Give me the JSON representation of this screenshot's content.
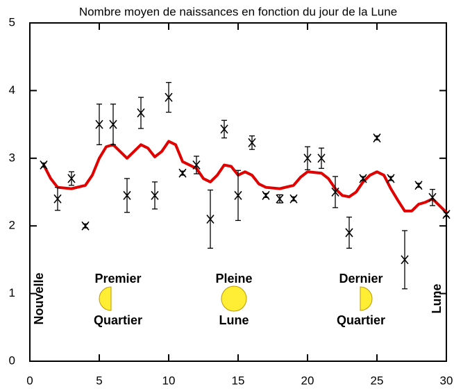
{
  "chart_data": {
    "type": "scatter",
    "title": "Nombre moyen de naissances en fonction du jour de la Lune",
    "xlim": [
      0,
      30
    ],
    "xticks": [
      0,
      5,
      10,
      15,
      20,
      25,
      30
    ],
    "ylim": [
      0,
      5
    ],
    "yticks": [
      0,
      1,
      2,
      3,
      4,
      5
    ],
    "points": {
      "color": "#000000",
      "x": [
        1,
        2,
        3,
        4,
        5,
        6,
        7,
        8,
        9,
        10,
        11,
        12,
        13,
        14,
        15,
        16,
        17,
        18,
        19,
        20,
        21,
        22,
        23,
        24,
        25,
        26,
        27,
        28,
        29,
        30
      ],
      "values": [
        2.9,
        2.4,
        2.7,
        2.0,
        3.5,
        3.5,
        2.45,
        3.67,
        2.45,
        3.9,
        2.78,
        2.9,
        2.1,
        3.43,
        2.45,
        3.23,
        2.45,
        2.4,
        2.4,
        3.0,
        3.0,
        2.5,
        1.9,
        2.7,
        3.3,
        2.7,
        1.5,
        2.6,
        2.42,
        2.17
      ],
      "errors": [
        0.03,
        0.17,
        0.1,
        0.03,
        0.3,
        0.3,
        0.25,
        0.23,
        0.2,
        0.22,
        0.03,
        0.13,
        0.43,
        0.13,
        0.37,
        0.1,
        0.03,
        0.06,
        0.03,
        0.17,
        0.15,
        0.23,
        0.23,
        0.03,
        0.03,
        0.03,
        0.43,
        0.03,
        0.12,
        0.03
      ]
    },
    "curve": {
      "color": "#e00000",
      "x": [
        1,
        1.5,
        2,
        3,
        4,
        4.5,
        5,
        5.5,
        6,
        6.5,
        7,
        7.5,
        8,
        8.5,
        9,
        9.5,
        10,
        10.5,
        11,
        12,
        12.5,
        13,
        13.5,
        14,
        14.5,
        15,
        15.5,
        16,
        16.5,
        17,
        18,
        19,
        19.5,
        20,
        21,
        21.5,
        22,
        22.5,
        23,
        23.5,
        24,
        24.5,
        25,
        25.5,
        26,
        26.5,
        27,
        27.5,
        28,
        28.5,
        29,
        29.5,
        30
      ],
      "values": [
        2.9,
        2.7,
        2.57,
        2.55,
        2.6,
        2.75,
        3.0,
        3.17,
        3.2,
        3.1,
        3.0,
        3.1,
        3.2,
        3.15,
        3.02,
        3.1,
        3.25,
        3.2,
        2.95,
        2.85,
        2.7,
        2.65,
        2.75,
        2.9,
        2.88,
        2.75,
        2.8,
        2.75,
        2.62,
        2.57,
        2.55,
        2.6,
        2.72,
        2.8,
        2.78,
        2.7,
        2.55,
        2.45,
        2.43,
        2.5,
        2.65,
        2.75,
        2.8,
        2.75,
        2.55,
        2.38,
        2.22,
        2.22,
        2.32,
        2.35,
        2.4,
        2.3,
        2.2
      ]
    },
    "annotations": [
      "Nouvelle",
      "Premier",
      "Quartier",
      "Pleine",
      "Lune",
      "Dernier",
      "Quartier",
      "Lune"
    ]
  }
}
